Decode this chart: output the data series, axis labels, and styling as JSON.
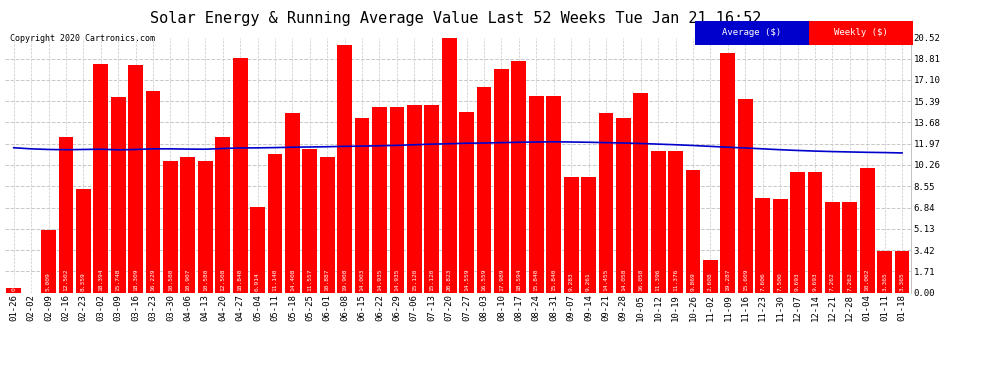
{
  "title": "Solar Energy & Running Average Value Last 52 Weeks Tue Jan 21 16:52",
  "copyright": "Copyright 2020 Cartronics.com",
  "bar_color": "#ff0000",
  "avg_line_color": "#0000cd",
  "background_color": "#ffffff",
  "grid_color": "#c8c8c8",
  "ylim": [
    0.0,
    20.52
  ],
  "yticks": [
    0.0,
    1.71,
    3.42,
    5.13,
    6.84,
    8.55,
    10.26,
    11.97,
    13.68,
    15.39,
    17.1,
    18.81,
    20.52
  ],
  "labels": [
    "01-26",
    "02-02",
    "02-09",
    "02-16",
    "02-23",
    "03-02",
    "03-09",
    "03-16",
    "03-23",
    "03-30",
    "04-06",
    "04-13",
    "04-20",
    "04-27",
    "05-04",
    "05-11",
    "05-18",
    "05-25",
    "06-01",
    "06-08",
    "06-15",
    "06-22",
    "06-29",
    "07-06",
    "07-13",
    "07-20",
    "07-27",
    "08-03",
    "08-10",
    "08-17",
    "08-24",
    "08-31",
    "09-07",
    "09-14",
    "09-21",
    "09-28",
    "10-05",
    "10-12",
    "10-19",
    "10-26",
    "11-02",
    "11-09",
    "11-16",
    "11-23",
    "11-30",
    "12-07",
    "12-14",
    "12-21",
    "12-28",
    "01-04",
    "01-11",
    "01-18"
  ],
  "weekly_values": [
    0.332,
    0.0,
    5.009,
    12.502,
    8.359,
    18.394,
    15.748,
    18.309,
    16.229,
    10.58,
    10.907,
    10.58,
    12.508,
    18.84,
    6.914,
    11.14,
    14.408,
    11.557,
    10.887,
    19.908,
    14.003,
    14.935,
    14.935,
    15.12,
    15.12,
    20.823,
    14.559,
    16.559,
    17.989,
    18.594,
    15.84,
    15.84,
    9.283,
    9.261,
    14.455,
    14.058,
    16.058,
    11.396,
    11.376,
    9.869,
    2.608,
    19.287,
    15.609,
    7.606,
    7.5,
    9.693,
    9.693,
    7.262,
    7.262,
    10.002,
    3.365,
    3.365
  ],
  "avg_values": [
    11.65,
    11.56,
    11.51,
    11.49,
    11.51,
    11.53,
    11.48,
    11.51,
    11.56,
    11.56,
    11.54,
    11.53,
    11.59,
    11.63,
    11.64,
    11.66,
    11.69,
    11.71,
    11.73,
    11.76,
    11.78,
    11.81,
    11.84,
    11.89,
    11.94,
    11.97,
    12.01,
    12.03,
    12.06,
    12.09,
    12.11,
    12.13,
    12.11,
    12.09,
    12.06,
    12.03,
    11.99,
    11.94,
    11.89,
    11.83,
    11.76,
    11.69,
    11.63,
    11.56,
    11.49,
    11.43,
    11.38,
    11.34,
    11.31,
    11.28,
    11.26,
    11.23
  ],
  "legend_avg_bg": "#0000cc",
  "legend_weekly_bg": "#ff0000",
  "legend_text_color": "#ffffff",
  "title_fontsize": 11,
  "tick_fontsize": 6.5,
  "label_fontsize": 5,
  "bar_width": 0.85
}
